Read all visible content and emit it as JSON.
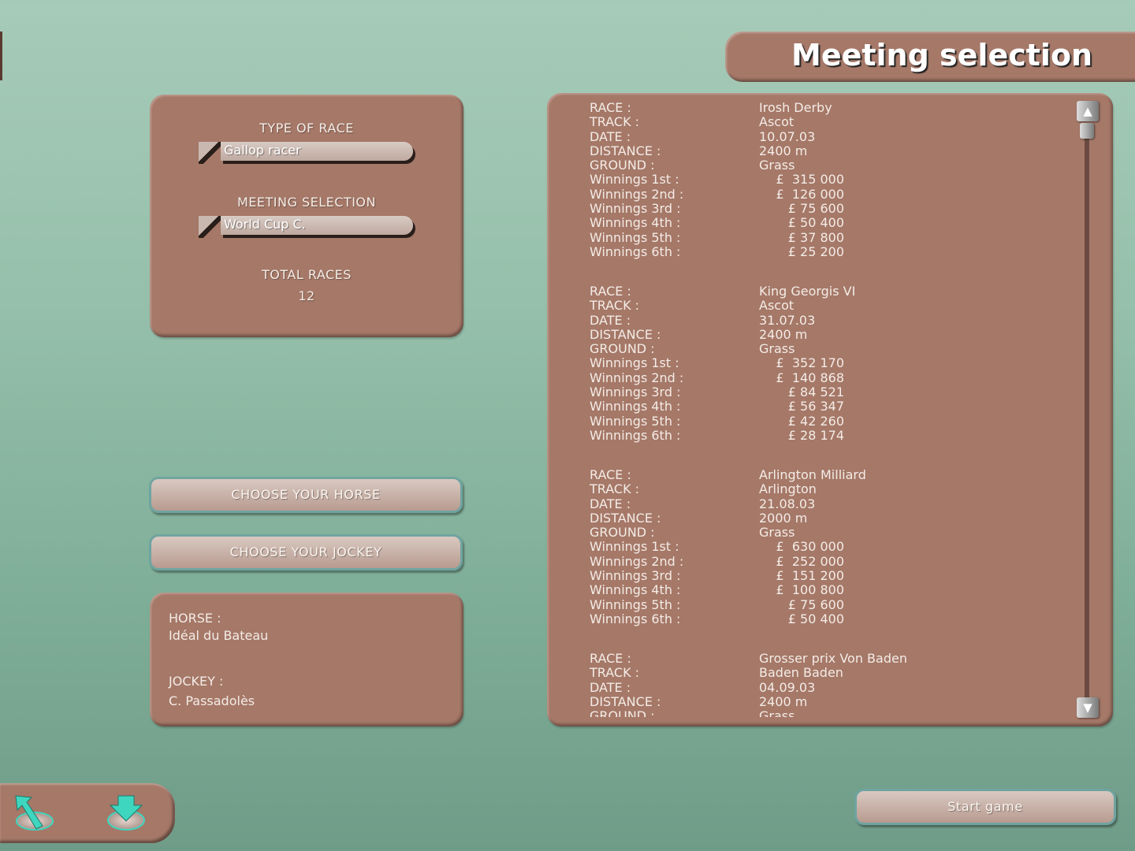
{
  "title": "Meeting selection",
  "settings": {
    "type_label": "TYPE OF RACE",
    "type_value": "Gallop racer",
    "meeting_label": "MEETING SELECTION",
    "meeting_value": "World Cup C.",
    "total_label": "TOTAL RACES",
    "total_value": "12"
  },
  "buttons": {
    "horse": "CHOOSE YOUR HORSE",
    "jockey": "CHOOSE YOUR JOCKEY",
    "start": "Start game"
  },
  "selection": {
    "horse_label": "HORSE :",
    "horse_value": "Idéal du Bateau",
    "jockey_label": "JOCKEY :",
    "jockey_value": "C. Passadolès"
  },
  "labels": [
    "RACE :",
    "TRACK :",
    "DATE :",
    "DISTANCE :",
    "GROUND :",
    "Winnings 1st :",
    "Winnings 2nd :",
    "Winnings 3rd :",
    "Winnings 4th :",
    "Winnings 5th :",
    "Winnings 6th :"
  ],
  "races": [
    {
      "race": "Irosh Derby",
      "track": "Ascot",
      "date": "10.07.03",
      "distance": "2400 m",
      "ground": "Grass",
      "prizes": [
        "£  315 000",
        "£  126 000",
        "£ 75 600",
        "£ 50 400",
        "£ 37 800",
        "£ 25 200"
      ]
    },
    {
      "race": "King Georgis VI",
      "track": "Ascot",
      "date": "31.07.03",
      "distance": "2400 m",
      "ground": "Grass",
      "prizes": [
        "£  352 170",
        "£  140 868",
        "£ 84 521",
        "£ 56 347",
        "£ 42 260",
        "£ 28 174"
      ]
    },
    {
      "race": "Arlington Milliard",
      "track": "Arlington",
      "date": "21.08.03",
      "distance": "2000 m",
      "ground": "Grass",
      "prizes": [
        "£  630 000",
        "£  252 000",
        "£  151 200",
        "£  100 800",
        "£ 75 600",
        "£ 50 400"
      ]
    },
    {
      "race": "Grosser prix Von Baden",
      "track": "Baden Baden",
      "date": "04.09.03",
      "distance": "2400 m",
      "ground": "Grass",
      "prizes": []
    }
  ],
  "icons": {
    "back": "back-arrow-icon",
    "save": "download-arrow-icon",
    "scroll_up": "triangle-up-icon",
    "scroll_down": "triangle-down-icon"
  },
  "colors": {
    "panel": "#a57868",
    "accent": "#3fd6bf"
  }
}
